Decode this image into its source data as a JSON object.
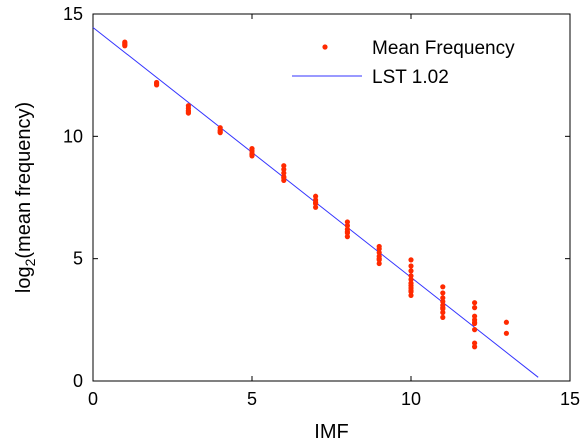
{
  "chart_data": {
    "type": "scatter",
    "title": "",
    "xlabel": "IMF",
    "ylabel_main": "log",
    "ylabel_sub": "2",
    "ylabel_rest": "(mean frequency)",
    "xlim": [
      0,
      15
    ],
    "ylim": [
      0,
      15
    ],
    "xticks": [
      0,
      5,
      10,
      15
    ],
    "yticks": [
      0,
      5,
      10,
      15
    ],
    "grid": false,
    "legend_position": "top-right",
    "series": [
      {
        "name": "Mean Frequency",
        "kind": "points",
        "color": "#ff2a00",
        "points": [
          [
            1,
            13.7
          ],
          [
            1,
            13.8
          ],
          [
            1,
            13.85
          ],
          [
            1,
            13.75
          ],
          [
            2,
            12.1
          ],
          [
            2,
            12.2
          ],
          [
            2,
            12.15
          ],
          [
            3,
            10.95
          ],
          [
            3,
            11.05
          ],
          [
            3,
            11.15
          ],
          [
            3,
            11.25
          ],
          [
            3,
            11.0
          ],
          [
            4,
            10.15
          ],
          [
            4,
            10.25
          ],
          [
            4,
            10.35
          ],
          [
            4,
            10.2
          ],
          [
            5,
            9.2
          ],
          [
            5,
            9.3
          ],
          [
            5,
            9.4
          ],
          [
            5,
            9.5
          ],
          [
            5,
            9.25
          ],
          [
            6,
            8.2
          ],
          [
            6,
            8.35
          ],
          [
            6,
            8.5
          ],
          [
            6,
            8.65
          ],
          [
            6,
            8.8
          ],
          [
            6,
            8.3
          ],
          [
            7,
            7.1
          ],
          [
            7,
            7.25
          ],
          [
            7,
            7.4
          ],
          [
            7,
            7.55
          ],
          [
            7,
            7.3
          ],
          [
            8,
            5.9
          ],
          [
            8,
            6.05
          ],
          [
            8,
            6.2
          ],
          [
            8,
            6.35
          ],
          [
            8,
            6.5
          ],
          [
            8,
            6.1
          ],
          [
            9,
            4.8
          ],
          [
            9,
            4.95
          ],
          [
            9,
            5.1
          ],
          [
            9,
            5.25
          ],
          [
            9,
            5.4
          ],
          [
            9,
            5.5
          ],
          [
            9,
            5.0
          ],
          [
            10,
            3.5
          ],
          [
            10,
            3.65
          ],
          [
            10,
            3.8
          ],
          [
            10,
            3.9
          ],
          [
            10,
            4.0
          ],
          [
            10,
            4.15
          ],
          [
            10,
            4.3
          ],
          [
            10,
            4.5
          ],
          [
            10,
            4.7
          ],
          [
            10,
            4.95
          ],
          [
            10,
            3.7
          ],
          [
            11,
            2.6
          ],
          [
            11,
            2.8
          ],
          [
            11,
            2.95
          ],
          [
            11,
            3.1
          ],
          [
            11,
            3.25
          ],
          [
            11,
            3.4
          ],
          [
            11,
            3.6
          ],
          [
            11,
            3.85
          ],
          [
            11,
            3.0
          ],
          [
            12,
            1.4
          ],
          [
            12,
            1.55
          ],
          [
            12,
            2.1
          ],
          [
            12,
            2.35
          ],
          [
            12,
            2.5
          ],
          [
            12,
            2.65
          ],
          [
            12,
            3.0
          ],
          [
            12,
            3.2
          ],
          [
            12,
            2.4
          ],
          [
            13,
            1.95
          ],
          [
            13,
            2.4
          ]
        ]
      },
      {
        "name": "LST 1.02",
        "kind": "line",
        "color": "#3333ff",
        "x": [
          0,
          14
        ],
        "y": [
          14.45,
          0.15
        ]
      }
    ]
  }
}
